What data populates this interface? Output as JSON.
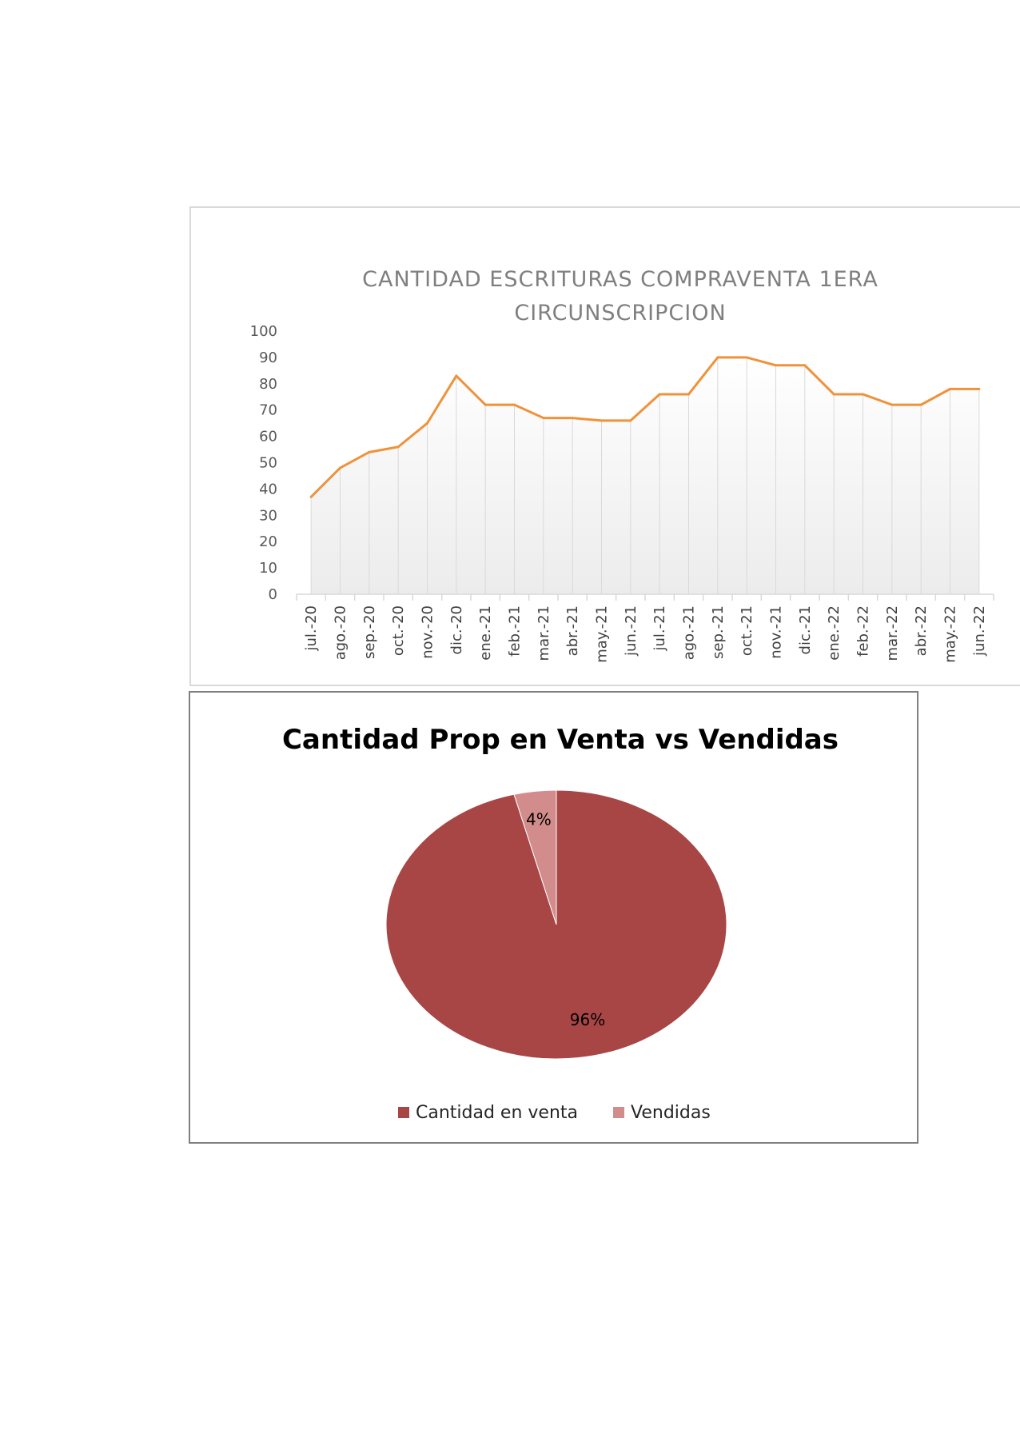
{
  "chart_data": [
    {
      "type": "line",
      "title_lines": [
        "CANTIDAD ESCRITURAS COMPRAVENTA 1ERA",
        "CIRCUNSCRIPCION"
      ],
      "categories": [
        "jul.-20",
        "ago.-20",
        "sep.-20",
        "oct.-20",
        "nov.-20",
        "dic.-20",
        "ene.-21",
        "feb.-21",
        "mar.-21",
        "abr.-21",
        "may.-21",
        "jun.-21",
        "jul.-21",
        "ago.-21",
        "sep.-21",
        "oct.-21",
        "nov.-21",
        "dic.-21",
        "ene.-22",
        "feb.-22",
        "mar.-22",
        "abr.-22",
        "may.-22",
        "jun.-22"
      ],
      "values": [
        37,
        48,
        54,
        56,
        65,
        83,
        72,
        72,
        67,
        67,
        66,
        66,
        76,
        76,
        90,
        90,
        87,
        87,
        76,
        76,
        72,
        72,
        78,
        78
      ],
      "yticks": [
        "0",
        "10",
        "20",
        "30",
        "40",
        "50",
        "60",
        "70",
        "80",
        "90",
        "100"
      ],
      "ylim": [
        0,
        100
      ],
      "color": "#f0923a",
      "grid": false,
      "legend": "none"
    },
    {
      "type": "pie",
      "title": "Cantidad Prop en Venta vs Vendidas",
      "slices": [
        {
          "name": "Cantidad en venta",
          "value": 96,
          "label": "96%",
          "color": "#a84646"
        },
        {
          "name": "Vendidas",
          "value": 4,
          "label": "4%",
          "color": "#d38c8c"
        }
      ],
      "legend": "bottom"
    }
  ]
}
